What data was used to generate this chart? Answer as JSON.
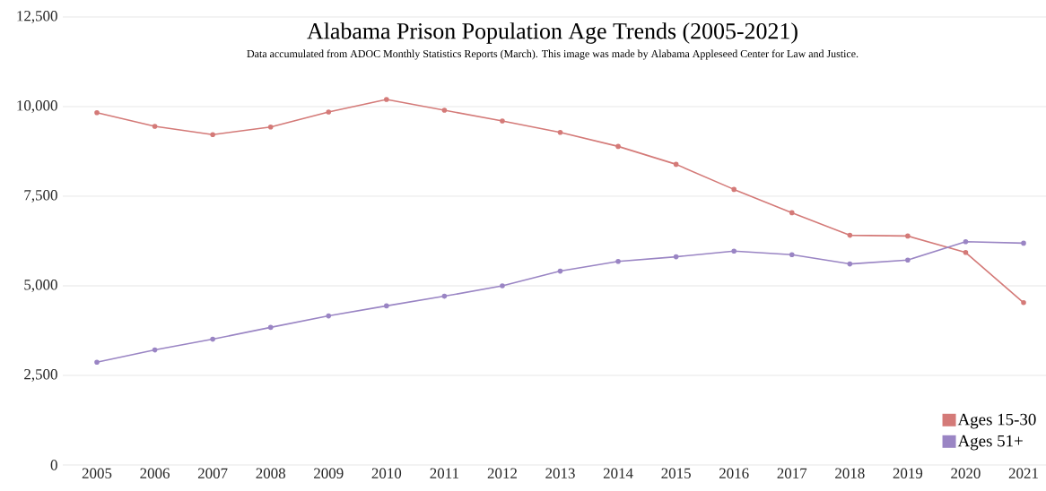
{
  "chart_data": {
    "type": "line",
    "title": "Alabama Prison Population Age Trends (2005-2021)",
    "subtitle": "Data accumulated from ADOC Monthly Statistics Reports (March). This image was made by Alabama Appleseed Center for Law and Justice.",
    "categories": [
      "2005",
      "2006",
      "2007",
      "2008",
      "2009",
      "2010",
      "2011",
      "2012",
      "2013",
      "2014",
      "2015",
      "2016",
      "2017",
      "2018",
      "2019",
      "2020",
      "2021"
    ],
    "series": [
      {
        "name": "Ages 15-30",
        "color": "#d47a78",
        "values": [
          9830,
          9450,
          9220,
          9430,
          9850,
          10200,
          9900,
          9600,
          9280,
          8890,
          8390,
          7690,
          7040,
          6410,
          6390,
          5930,
          4530
        ]
      },
      {
        "name": "Ages 51+",
        "color": "#9a85c4",
        "values": [
          2870,
          3210,
          3510,
          3840,
          4160,
          4440,
          4710,
          5000,
          5410,
          5680,
          5810,
          5970,
          5870,
          5610,
          5720,
          6230,
          6190
        ]
      }
    ],
    "ylim": [
      0,
      12500
    ],
    "yticks": [
      0,
      {
        "value": 2500,
        "label": "2,500"
      },
      {
        "value": 5000,
        "label": "5,000"
      },
      {
        "value": 7500,
        "label": "7,500"
      },
      {
        "value": 10000,
        "label": "10,000"
      },
      {
        "value": 12500,
        "label": "12,500"
      }
    ],
    "grid": "y",
    "legend": "bottom right",
    "marker": "circle",
    "line_style": "solid"
  }
}
